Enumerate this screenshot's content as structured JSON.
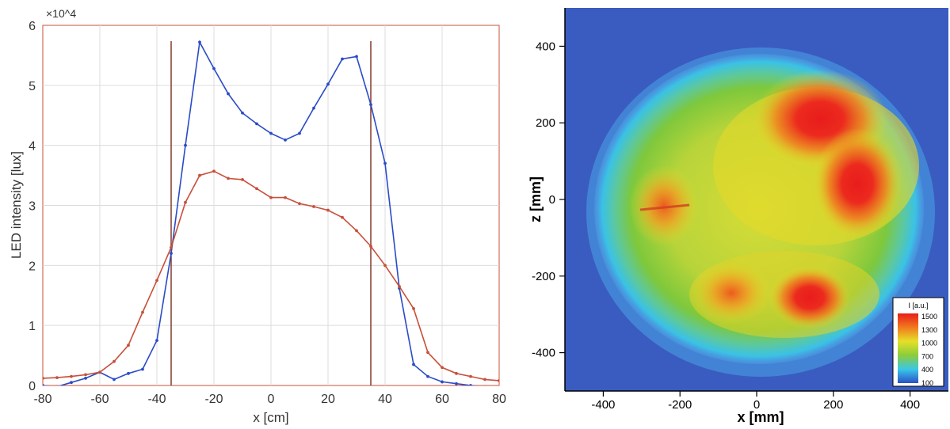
{
  "chart_data": [
    {
      "type": "line",
      "title": "",
      "xlabel": "x [cm]",
      "ylabel": "LED intensity [lux]",
      "y_exponent_label": "×10^4",
      "xlim": [
        -80,
        80
      ],
      "ylim": [
        0,
        6
      ],
      "xticks": [
        -80,
        -60,
        -40,
        -20,
        0,
        20,
        40,
        60,
        80
      ],
      "yticks": [
        0,
        1,
        2,
        3,
        4,
        5,
        6
      ],
      "grid": true,
      "series": [
        {
          "color": "#2a4bc7",
          "x": [
            -80,
            -75,
            -70,
            -65,
            -60,
            -55,
            -50,
            -45,
            -40,
            -35,
            -30,
            -25,
            -20,
            -15,
            -10,
            -5,
            0,
            5,
            10,
            15,
            20,
            25,
            30,
            35,
            40,
            45,
            50,
            55,
            60,
            65,
            70,
            75,
            80
          ],
          "y": [
            0.0,
            -0.02,
            0.05,
            0.12,
            0.22,
            0.1,
            0.2,
            0.27,
            0.75,
            2.2,
            4.0,
            5.72,
            5.28,
            4.86,
            4.54,
            4.36,
            4.2,
            4.09,
            4.2,
            4.62,
            5.02,
            5.44,
            5.48,
            4.68,
            3.7,
            1.62,
            0.35,
            0.15,
            0.06,
            0.03,
            0.0,
            -0.02,
            -0.04
          ]
        },
        {
          "color": "#c8503a",
          "x": [
            -80,
            -75,
            -70,
            -65,
            -60,
            -55,
            -50,
            -45,
            -40,
            -35,
            -30,
            -25,
            -20,
            -15,
            -10,
            -5,
            0,
            5,
            10,
            15,
            20,
            25,
            30,
            35,
            40,
            45,
            50,
            55,
            60,
            65,
            70,
            75,
            80
          ],
          "y": [
            0.12,
            0.13,
            0.15,
            0.18,
            0.22,
            0.4,
            0.67,
            1.22,
            1.75,
            2.3,
            3.05,
            3.5,
            3.57,
            3.45,
            3.43,
            3.28,
            3.13,
            3.13,
            3.03,
            2.98,
            2.92,
            2.8,
            2.58,
            2.32,
            2.0,
            1.65,
            1.28,
            0.55,
            0.3,
            0.2,
            0.15,
            0.1,
            0.08
          ]
        }
      ],
      "vertical_lines": [
        -35,
        35
      ]
    },
    {
      "type": "heatmap",
      "title": "",
      "xlabel": "x [mm]",
      "ylabel": "z [mm]",
      "xlim": [
        -500,
        500
      ],
      "ylim": [
        -500,
        500
      ],
      "xticks": [
        -400,
        -200,
        0,
        200,
        400
      ],
      "yticks": [
        -400,
        -200,
        0,
        200,
        400
      ],
      "colorbar": {
        "title": "I [a.u.]",
        "levels": [
          "1500",
          "1300",
          "1000",
          "700",
          "400",
          "100"
        ],
        "colors": [
          "#e8201c",
          "#f07a1e",
          "#e6e028",
          "#8ccc3a",
          "#3ac8e8",
          "#2a50c8"
        ]
      },
      "background_color": "#3a5cc0"
    }
  ]
}
